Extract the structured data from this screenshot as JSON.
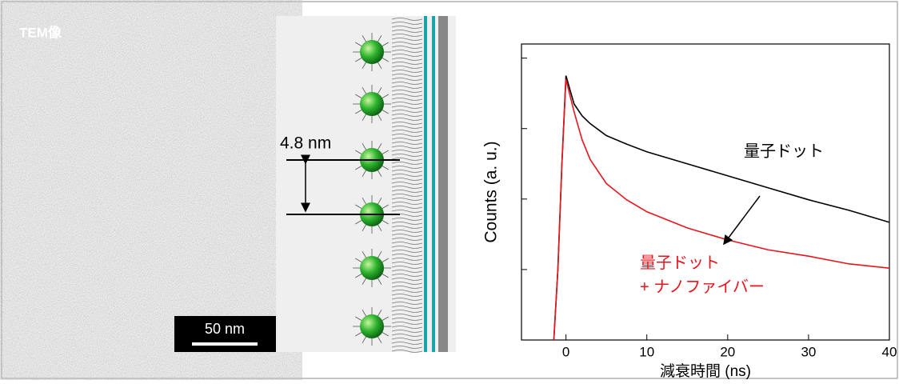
{
  "tem": {
    "label": "TEM像",
    "scale_bar": "50 nm"
  },
  "schematic": {
    "spacing": "4.8 nm"
  },
  "chart_data": {
    "type": "line",
    "x_label": "減衰時間 (ns)",
    "y_label": "Counts (a. u.)",
    "x": [
      -1.5,
      -1,
      -0.5,
      0,
      1,
      2,
      3,
      5,
      7.5,
      10,
      15,
      20,
      25,
      30,
      35,
      40
    ],
    "series": [
      {
        "name": "量子ドット",
        "color": "#000000",
        "values": [
          0,
          1.0,
          2.5,
          3.75,
          3.35,
          3.18,
          3.07,
          2.9,
          2.78,
          2.67,
          2.5,
          2.33,
          2.16,
          1.99,
          1.84,
          1.67
        ]
      },
      {
        "name": "量子ドット\n+ ナノファイバー",
        "color": "#e8141b",
        "values": [
          0,
          1.0,
          2.5,
          3.7,
          3.24,
          2.84,
          2.56,
          2.22,
          1.99,
          1.82,
          1.59,
          1.42,
          1.28,
          1.19,
          1.08,
          1.02
        ]
      }
    ],
    "xlim": [
      -5.5,
      40
    ],
    "ylim": [
      0,
      4.2
    ],
    "xticks": [
      0,
      10,
      20,
      30,
      40
    ],
    "yticks": [
      1,
      2,
      3,
      4
    ]
  }
}
